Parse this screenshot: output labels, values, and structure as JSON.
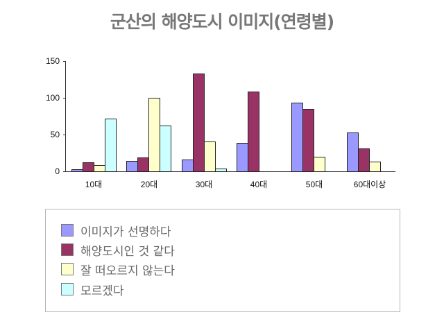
{
  "chart_data": {
    "type": "bar",
    "title": "군산의 해양도시 이미지(연령별)",
    "xlabel": "",
    "ylabel": "",
    "ylim": [
      0,
      150
    ],
    "yticks": [
      0,
      50,
      100,
      150
    ],
    "grid": false,
    "legend_position": "bottom",
    "categories": [
      "10대",
      "20대",
      "30대",
      "40대",
      "50대",
      "60대이상"
    ],
    "series": [
      {
        "name": "이미지가 선명하다",
        "color": "#9999FF",
        "values": [
          4,
          15,
          17,
          39,
          94,
          53
        ]
      },
      {
        "name": "해양도시인 것 같다",
        "color": "#993366",
        "values": [
          13,
          20,
          133,
          109,
          85,
          32
        ]
      },
      {
        "name": "잘 떠오르지 않는다",
        "color": "#FFFFCC",
        "values": [
          9,
          100,
          41,
          0,
          21,
          14
        ]
      },
      {
        "name": "모르겠다",
        "color": "#CCFFFF",
        "values": [
          72,
          63,
          5,
          0,
          0,
          0
        ]
      }
    ]
  },
  "title": "군산의 해양도시 이미지(연령별)",
  "y_tick_labels": [
    "150",
    "100",
    "50",
    "0"
  ],
  "legend": {
    "items": [
      {
        "label": "이미지가 선명하다",
        "color": "#9999FF"
      },
      {
        "label": "해양도시인 것 같다",
        "color": "#993366"
      },
      {
        "label": "잘 떠오르지 않는다",
        "color": "#FFFFCC"
      },
      {
        "label": "모르겠다",
        "color": "#CCFFFF"
      }
    ]
  }
}
